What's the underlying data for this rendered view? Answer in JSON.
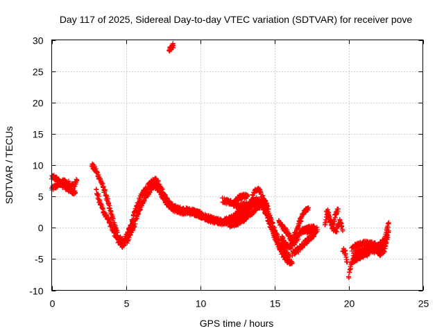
{
  "chart_data": {
    "type": "scatter",
    "title": "Day 117 of 2025, Sidereal Day-to-day VTEC variation (SDTVAR) for receiver pove",
    "xlabel": "GPS time / hours",
    "ylabel": "SDTVAR / TECUs",
    "xlim": [
      0,
      25
    ],
    "ylim": [
      -10,
      30
    ],
    "xticks": [
      0,
      5,
      10,
      15,
      20,
      25
    ],
    "yticks": [
      -10,
      -5,
      0,
      5,
      10,
      15,
      20,
      25,
      30
    ],
    "grid": true,
    "marker": "+",
    "color": "#ff0000",
    "segments": [
      {
        "name": "early-a",
        "points": [
          [
            0.0,
            6.2
          ],
          [
            0.4,
            6.8
          ],
          [
            0.8,
            7.4
          ],
          [
            1.2,
            7.0
          ],
          [
            1.5,
            6.6
          ],
          [
            1.7,
            7.6
          ]
        ]
      },
      {
        "name": "early-b",
        "points": [
          [
            0.0,
            8.2
          ],
          [
            0.4,
            7.6
          ],
          [
            0.8,
            6.6
          ],
          [
            1.2,
            6.0
          ],
          [
            1.6,
            5.6
          ]
        ]
      },
      {
        "name": "main-a",
        "points": [
          [
            2.7,
            10.0
          ],
          [
            3.0,
            9.0
          ],
          [
            3.3,
            7.5
          ],
          [
            3.6,
            5.5
          ],
          [
            3.9,
            3.0
          ],
          [
            4.2,
            0.5
          ],
          [
            4.5,
            -1.5
          ],
          [
            4.8,
            -2.2
          ],
          [
            5.1,
            -1.0
          ],
          [
            5.4,
            1.0
          ],
          [
            5.7,
            3.2
          ],
          [
            6.0,
            5.0
          ],
          [
            6.3,
            6.2
          ],
          [
            6.6,
            7.0
          ],
          [
            6.9,
            7.8
          ],
          [
            7.2,
            7.0
          ],
          [
            7.5,
            5.5
          ],
          [
            7.8,
            4.2
          ],
          [
            8.1,
            3.5
          ],
          [
            8.5,
            3.0
          ],
          [
            9.0,
            2.8
          ],
          [
            9.5,
            2.7
          ],
          [
            10.0,
            2.2
          ],
          [
            10.5,
            1.6
          ],
          [
            11.0,
            1.2
          ],
          [
            11.5,
            1.0
          ],
          [
            12.0,
            1.4
          ],
          [
            12.5,
            2.2
          ],
          [
            13.0,
            3.0
          ],
          [
            13.5,
            4.0
          ],
          [
            13.8,
            4.5
          ],
          [
            14.1,
            4.0
          ],
          [
            14.4,
            2.5
          ],
          [
            14.7,
            0.5
          ],
          [
            15.0,
            -1.5
          ],
          [
            15.3,
            -3.0
          ],
          [
            15.6,
            -4.5
          ],
          [
            15.9,
            -5.3
          ],
          [
            16.2,
            -5.6
          ]
        ]
      },
      {
        "name": "main-b",
        "points": [
          [
            3.0,
            6.0
          ],
          [
            3.3,
            3.5
          ],
          [
            3.6,
            2.0
          ],
          [
            3.9,
            0.8
          ],
          [
            4.2,
            -0.8
          ],
          [
            4.5,
            -2.2
          ],
          [
            4.8,
            -2.8
          ],
          [
            5.1,
            -2.0
          ],
          [
            5.4,
            -0.5
          ],
          [
            5.7,
            1.5
          ],
          [
            6.0,
            3.5
          ],
          [
            6.3,
            5.0
          ],
          [
            6.6,
            5.8
          ],
          [
            6.9,
            6.8
          ],
          [
            7.2,
            6.0
          ],
          [
            7.5,
            4.8
          ],
          [
            7.8,
            3.8
          ],
          [
            8.2,
            3.0
          ],
          [
            8.6,
            2.6
          ],
          [
            9.0,
            2.5
          ],
          [
            9.5,
            2.4
          ],
          [
            10.0,
            2.0
          ],
          [
            10.5,
            1.4
          ],
          [
            11.0,
            1.0
          ],
          [
            11.5,
            0.8
          ],
          [
            12.0,
            1.0
          ],
          [
            12.5,
            1.4
          ],
          [
            13.0,
            2.0
          ],
          [
            13.3,
            3.0
          ],
          [
            13.6,
            5.5
          ],
          [
            13.9,
            6.2
          ],
          [
            14.2,
            5.0
          ],
          [
            14.5,
            3.0
          ],
          [
            14.8,
            1.0
          ],
          [
            15.1,
            -1.0
          ],
          [
            15.4,
            -2.6
          ],
          [
            15.7,
            -3.8
          ],
          [
            16.0,
            -4.6
          ]
        ]
      },
      {
        "name": "main-c",
        "points": [
          [
            11.5,
            4.4
          ],
          [
            12.0,
            4.0
          ],
          [
            12.5,
            3.5
          ],
          [
            13.0,
            3.6
          ],
          [
            13.5,
            3.8
          ],
          [
            14.0,
            3.2
          ]
        ]
      },
      {
        "name": "main-d",
        "points": [
          [
            12.0,
            0.4
          ],
          [
            12.5,
            0.8
          ],
          [
            13.0,
            1.5
          ],
          [
            13.5,
            2.5
          ],
          [
            14.0,
            3.5
          ],
          [
            14.3,
            4.5
          ],
          [
            14.6,
            3.0
          ]
        ]
      },
      {
        "name": "main-e",
        "points": [
          [
            12.3,
            4.0
          ],
          [
            12.6,
            4.8
          ],
          [
            12.9,
            5.0
          ],
          [
            13.2,
            5.2
          ]
        ]
      },
      {
        "name": "late-a",
        "points": [
          [
            15.3,
            1.0
          ],
          [
            15.6,
            0.0
          ],
          [
            15.9,
            -1.0
          ],
          [
            16.2,
            -2.0
          ],
          [
            16.4,
            -1.0
          ],
          [
            16.7,
            1.0
          ],
          [
            17.0,
            2.5
          ],
          [
            17.3,
            3.2
          ]
        ]
      },
      {
        "name": "late-b",
        "points": [
          [
            15.5,
            -1.5
          ],
          [
            15.8,
            -2.8
          ],
          [
            16.1,
            -3.0
          ],
          [
            16.4,
            -2.2
          ],
          [
            16.7,
            -1.0
          ],
          [
            17.0,
            -0.3
          ],
          [
            17.3,
            -0.5
          ],
          [
            17.6,
            -1.0
          ]
        ]
      },
      {
        "name": "late-c",
        "points": [
          [
            16.2,
            -4.2
          ],
          [
            16.6,
            -3.5
          ],
          [
            17.0,
            -2.5
          ],
          [
            17.4,
            -1.6
          ],
          [
            17.8,
            -0.8
          ]
        ]
      },
      {
        "name": "late-d",
        "points": [
          [
            16.8,
            -0.5
          ],
          [
            17.2,
            -0.2
          ],
          [
            17.6,
            0.0
          ],
          [
            17.9,
            -0.3
          ]
        ]
      },
      {
        "name": "g19-a",
        "points": [
          [
            18.4,
            0.5
          ],
          [
            18.6,
            2.5
          ],
          [
            18.8,
            1.0
          ],
          [
            19.0,
            -0.5
          ],
          [
            19.2,
            -0.3
          ],
          [
            19.4,
            1.0
          ],
          [
            19.6,
            -0.5
          ]
        ]
      },
      {
        "name": "g19-b",
        "points": [
          [
            18.5,
            2.8
          ],
          [
            18.7,
            1.5
          ],
          [
            18.9,
            0.0
          ],
          [
            19.1,
            2.0
          ],
          [
            19.3,
            3.0
          ]
        ]
      },
      {
        "name": "g20-a",
        "points": [
          [
            19.6,
            -3.5
          ],
          [
            19.75,
            -4.0
          ],
          [
            19.9,
            -5.5
          ]
        ]
      },
      {
        "name": "g20-b",
        "points": [
          [
            20.0,
            -7.8
          ],
          [
            20.2,
            -5.5
          ],
          [
            20.5,
            -5.0
          ],
          [
            21.0,
            -4.4
          ],
          [
            21.5,
            -3.8
          ],
          [
            21.9,
            -3.6
          ],
          [
            22.1,
            -4.2
          ],
          [
            22.4,
            -3.5
          ],
          [
            22.7,
            -0.5
          ]
        ]
      },
      {
        "name": "g20-c",
        "points": [
          [
            20.2,
            -3.5
          ],
          [
            20.5,
            -2.8
          ],
          [
            21.0,
            -2.5
          ],
          [
            21.5,
            -2.6
          ],
          [
            22.0,
            -2.9
          ],
          [
            22.4,
            -2.0
          ],
          [
            22.7,
            0.8
          ]
        ]
      },
      {
        "name": "g20-d",
        "points": [
          [
            20.3,
            -4.5
          ],
          [
            20.7,
            -3.8
          ],
          [
            21.2,
            -3.3
          ],
          [
            21.7,
            -3.0
          ],
          [
            22.2,
            -3.3
          ],
          [
            22.6,
            -1.5
          ]
        ]
      },
      {
        "name": "outlier",
        "points": [
          [
            7.9,
            28.3
          ],
          [
            8.0,
            28.6
          ],
          [
            8.1,
            28.9
          ],
          [
            8.2,
            29.1
          ]
        ]
      }
    ]
  }
}
